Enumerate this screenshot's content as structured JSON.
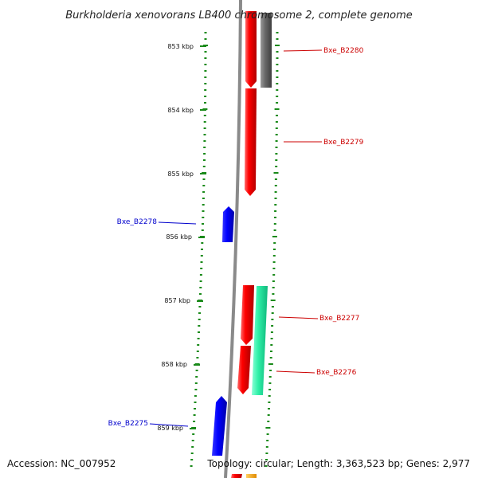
{
  "title": "Burkholderia xenovorans LB400 chromosome 2, complete genome",
  "footer": {
    "accession": "Accession: NC_007952",
    "summary": "Topology: circular; Length: 3,363,523 bp; Genes: 2,977"
  },
  "ticks": [
    "853 kbp",
    "854 kbp",
    "855 kbp",
    "856 kbp",
    "857 kbp",
    "858 kbp",
    "859 kbp"
  ],
  "genes": [
    {
      "label": "Bxe_B2280",
      "strand": "forward",
      "color": "#cc0000"
    },
    {
      "label": "Bxe_B2279",
      "strand": "forward",
      "color": "#cc0000"
    },
    {
      "label": "Bxe_B2278",
      "strand": "reverse",
      "color": "#0000cc"
    },
    {
      "label": "Bxe_B2277",
      "strand": "forward",
      "color": "#cc0000"
    },
    {
      "label": "Bxe_B2276",
      "strand": "forward",
      "color": "#cc0000"
    },
    {
      "label": "Bxe_B2275",
      "strand": "reverse",
      "color": "#0000cc"
    }
  ],
  "colors": {
    "cds": "#ff0000",
    "reverse_cds": "#0000ff",
    "other_feature": "#686868",
    "rna": "#1fe8a0",
    "backbone": "#8a8a8a",
    "tick": "#1a8a1a"
  }
}
